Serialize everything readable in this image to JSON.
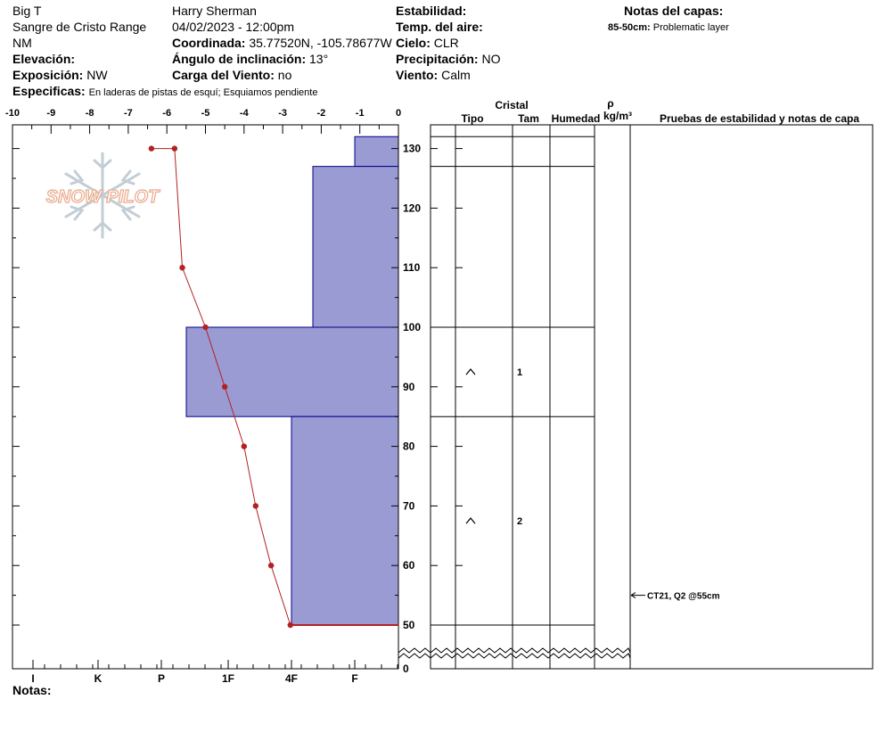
{
  "header": {
    "location": "Big T",
    "range": "Sangre de Cristo Range",
    "state": "NM",
    "elevation_label": "Elevación:",
    "exposure_label": "Exposición:",
    "exposure_value": "NW",
    "specifics_label": "Especificas:",
    "specifics_value": "En laderas de pistas de esquí; Esquiamos pendiente",
    "observer": "Harry Sherman",
    "datetime": "04/02/2023 - 12:00pm",
    "coordinate_label": "Coordinada:",
    "coordinate_value": "35.77520N, -105.78677W",
    "slope_label": "Ángulo de inclinación:",
    "slope_value": "13°",
    "wind_load_label": "Carga del Viento:",
    "wind_load_value": "no",
    "stability_label": "Estabilidad:",
    "air_temp_label": "Temp. del aire:",
    "sky_label": "Cielo:",
    "sky_value": "CLR",
    "precip_label": "Precipitación:",
    "precip_value": "NO",
    "wind_label": "Viento:",
    "wind_value": "Calm",
    "layer_notes_title": "Notas del capas:",
    "layer_note_range": "85-50cm:",
    "layer_note_text": "Problematic layer"
  },
  "logo_text": "SNOW PILOT",
  "notes_label": "Notas:",
  "colors": {
    "hardness_fill": "#9b9bd4",
    "hardness_stroke": "#00008b",
    "temp_line": "#b22222",
    "logo": "#f2c8b4"
  },
  "chart_data": {
    "type": "snow-profile",
    "temperature_axis": {
      "ticks": [
        "-10",
        "-9",
        "-8",
        "-7",
        "-6",
        "-5",
        "-4",
        "-3",
        "-2",
        "-1",
        "0"
      ],
      "range": [
        -10,
        0
      ]
    },
    "hardness_axis": {
      "labels": [
        "I",
        "K",
        "P",
        "1F",
        "4F",
        "F"
      ]
    },
    "depth_axis": {
      "ticks": [
        "0",
        "50",
        "60",
        "70",
        "80",
        "90",
        "100",
        "110",
        "120",
        "130"
      ],
      "range": [
        0,
        134
      ]
    },
    "temperature_profile": [
      {
        "depth": 130,
        "temp": -6.4
      },
      {
        "depth": 130,
        "temp": -5.8
      },
      {
        "depth": 110,
        "temp": -5.6
      },
      {
        "depth": 100,
        "temp": -5.0
      },
      {
        "depth": 90,
        "temp": -4.5
      },
      {
        "depth": 80,
        "temp": -4.0
      },
      {
        "depth": 70,
        "temp": -3.7
      },
      {
        "depth": 60,
        "temp": -3.3
      },
      {
        "depth": 50,
        "temp": -2.8
      }
    ],
    "hardness_profile": [
      {
        "top": 132,
        "bottom": 127,
        "hardness": "F"
      },
      {
        "top": 127,
        "bottom": 100,
        "hardness": "F+"
      },
      {
        "top": 100,
        "bottom": 85,
        "hardness": "1F+"
      },
      {
        "top": 85,
        "bottom": 50,
        "hardness": "4F"
      }
    ],
    "layers": {
      "header_cristal": "Cristal",
      "header_tipo": "Tipo",
      "header_tam": "Tam",
      "header_humedad": "Humedad",
      "header_rho": "ρ",
      "header_rho_unit": "kg/m³",
      "header_tests": "Pruebas de estabilidad y notas de capa",
      "boundaries": [
        132,
        127,
        100,
        85,
        50
      ],
      "crystals": [
        {
          "depth": 92.5,
          "type": "^",
          "size": "1"
        },
        {
          "depth": 67.5,
          "type": "^",
          "size": "2"
        }
      ],
      "tests": [
        {
          "depth": 55,
          "text": "CT21, Q2 @55cm"
        }
      ]
    }
  }
}
